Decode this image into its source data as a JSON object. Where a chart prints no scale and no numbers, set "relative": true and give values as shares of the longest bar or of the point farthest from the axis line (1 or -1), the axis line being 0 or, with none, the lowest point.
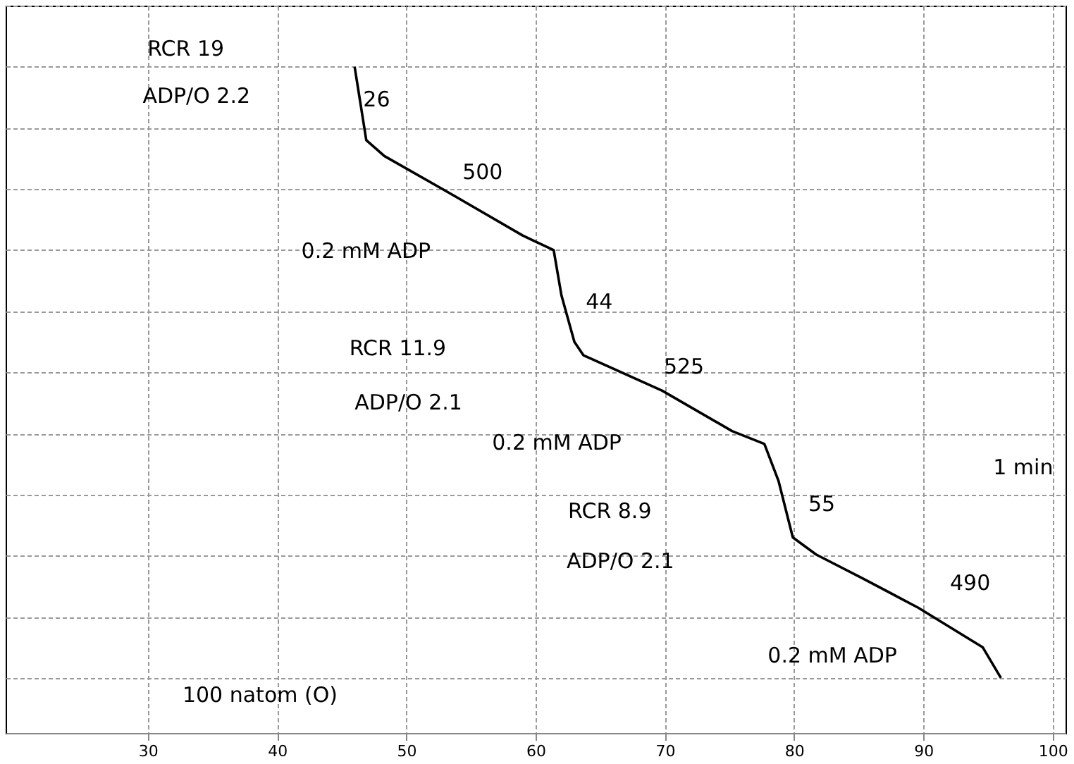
{
  "chart_data": {
    "type": "line",
    "relative": true,
    "grid": true,
    "color": "#000000",
    "x": [
      46.0,
      46.9,
      48.3,
      53.7,
      59.0,
      61.4,
      62.0,
      63.0,
      63.7,
      69.8,
      75.2,
      77.7,
      78.8,
      79.9,
      81.7,
      85.3,
      89.6,
      94.6,
      96.0
    ],
    "values": [
      1,
      0.88,
      0.854,
      0.789,
      0.724,
      0.7,
      0.626,
      0.55,
      0.528,
      0.47,
      0.404,
      0.383,
      0.322,
      0.23,
      0.202,
      0.163,
      0.115,
      0.05,
      0
    ],
    "xlim": [
      19,
      101
    ],
    "xticks": [
      30,
      40,
      50,
      60,
      70,
      80,
      90,
      100
    ],
    "annotations": [
      "RCR  19",
      "ADP/O  2.2",
      "26",
      "500",
      "0.2 mM ADP",
      "44",
      "RCR  11.9",
      "ADP/O  2.1",
      "525",
      "0.2 mM ADP",
      "1 min",
      "55",
      "RCR  8.9",
      "ADP/O  2.1",
      "490",
      "0.2 mM ADP",
      "100 natom (O)"
    ]
  }
}
